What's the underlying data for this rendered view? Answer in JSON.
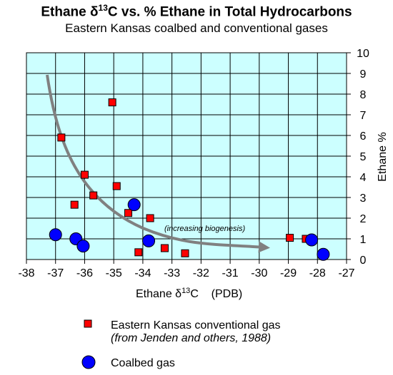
{
  "chart_data": {
    "type": "scatter",
    "title_main": "Ethane δ",
    "title_sup": "13",
    "title_rest": "C vs. % Ethane in Total Hydrocarbons",
    "subtitle": "Eastern Kansas coalbed and conventional gases",
    "xlabel_main": "Ethane δ",
    "xlabel_sup": "13",
    "xlabel_rest": "C    (PDB)",
    "ylabel": "Ethane %",
    "xlim": [
      -38,
      -27
    ],
    "ylim": [
      0,
      10
    ],
    "xticks": [
      "-38",
      "-37",
      "-36",
      "-35",
      "-34",
      "-33",
      "-32",
      "-31",
      "-30",
      "-29",
      "-28",
      "-27"
    ],
    "yticks": [
      "0",
      "1",
      "2",
      "3",
      "4",
      "5",
      "6",
      "7",
      "8",
      "9",
      "10"
    ],
    "grid": true,
    "plot_background": "#ccffff",
    "annotation": "(increasing biogenesis)",
    "series": [
      {
        "name": "Eastern Kansas conventional gas",
        "note": "(from Jenden and others, 1988)",
        "marker": "square",
        "color": "#ff0000",
        "points": [
          [
            -36.8,
            5.9
          ],
          [
            -35.05,
            7.6
          ],
          [
            -36.0,
            4.1
          ],
          [
            -35.7,
            3.1
          ],
          [
            -36.35,
            2.65
          ],
          [
            -34.9,
            3.55
          ],
          [
            -34.5,
            2.25
          ],
          [
            -33.75,
            2.0
          ],
          [
            -34.15,
            0.35
          ],
          [
            -33.25,
            0.55
          ],
          [
            -32.55,
            0.3
          ],
          [
            -28.95,
            1.05
          ],
          [
            -28.4,
            1.0
          ]
        ]
      },
      {
        "name": "Coalbed gas",
        "marker": "circle",
        "color": "#0000ff",
        "points": [
          [
            -37.0,
            1.2
          ],
          [
            -36.3,
            1.0
          ],
          [
            -36.05,
            0.65
          ],
          [
            -34.3,
            2.65
          ],
          [
            -33.8,
            0.9
          ],
          [
            -28.2,
            0.95
          ],
          [
            -27.8,
            0.25
          ]
        ]
      }
    ]
  }
}
